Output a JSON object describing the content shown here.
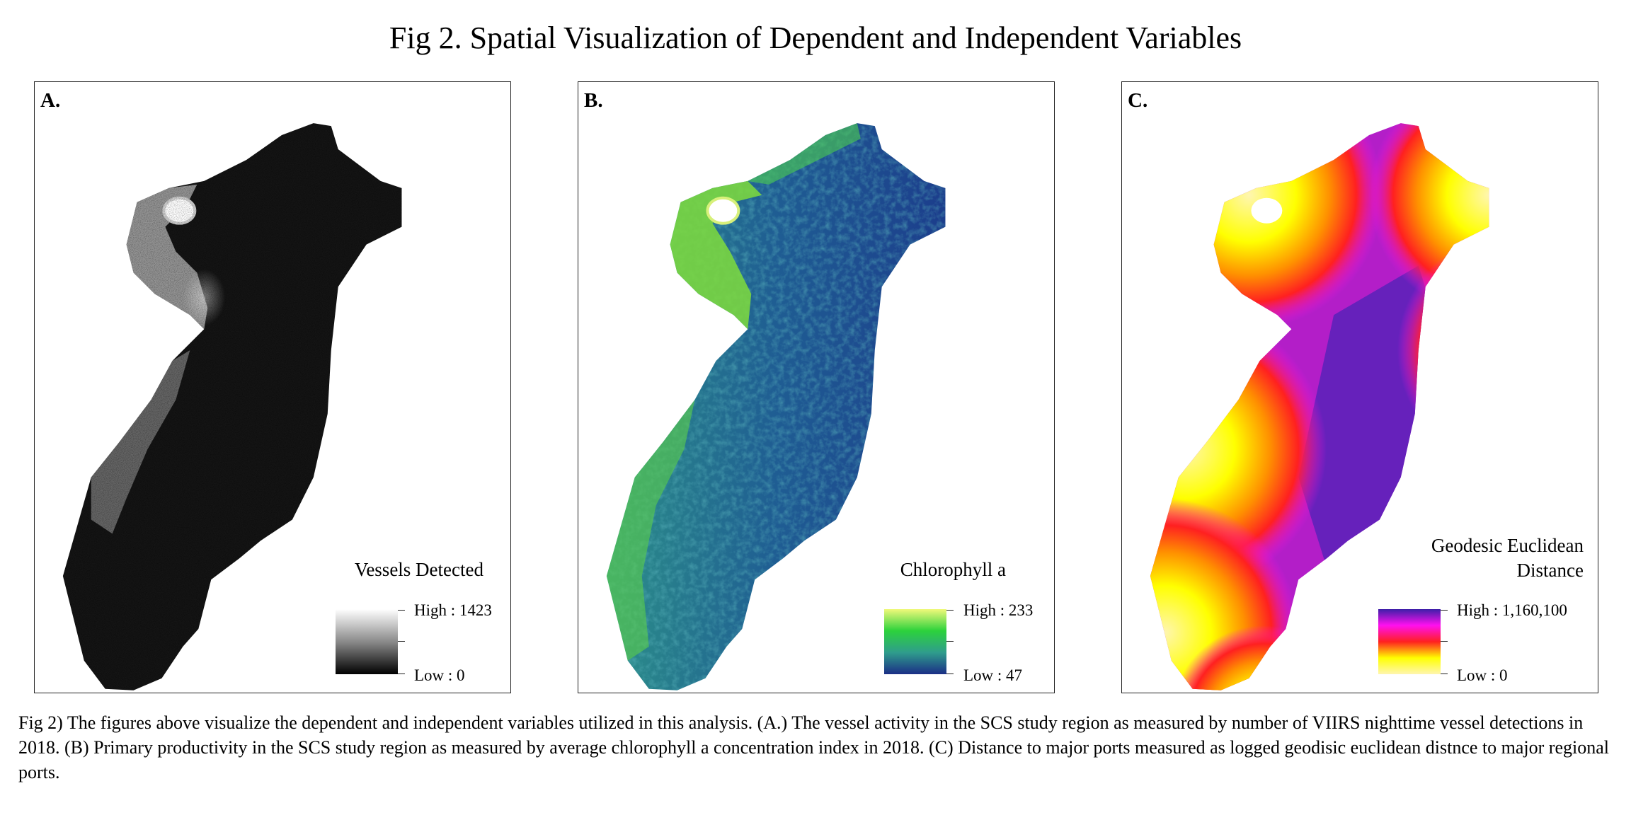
{
  "figure": {
    "title": "Fig 2. Spatial Visualization of Dependent and Independent Variables",
    "caption": "Fig 2) The figures above visualize the dependent and independent variables utilized in this analysis. (A.) The vessel activity in the SCS study region as measured by number of VIIRS nighttime vessel detections in 2018. (B) Primary productivity in the SCS study region as measured by average chlorophyll a concentration index in 2018. (C) Distance to major ports measured as logged geodisic euclidean distnce to major regional ports."
  },
  "panels": [
    {
      "label": "A.",
      "legend_title": "Vessels Detected",
      "high_label": "High : 1423",
      "low_label": "Low : 0",
      "high_value": 1423,
      "low_value": 0,
      "ramp_colors": [
        "#ffffff",
        "#8a8a8a",
        "#000000"
      ]
    },
    {
      "label": "B.",
      "legend_title": "Chlorophyll a",
      "high_label": "High : 233",
      "low_label": "Low : 47",
      "high_value": 233,
      "low_value": 47,
      "ramp_colors": [
        "#f0f97a",
        "#2cd23c",
        "#2f9d8c",
        "#1b2e86"
      ]
    },
    {
      "label": "C.",
      "legend_title": "Geodesic Euclidean Distance",
      "high_label": "High : 1,160,100",
      "low_label": "Low : 0",
      "high_value": 1160100,
      "low_value": 0,
      "ramp_colors": [
        "#3d1fa8",
        "#ff10f0",
        "#ff2020",
        "#ffff00",
        "#fff6b0"
      ]
    }
  ]
}
